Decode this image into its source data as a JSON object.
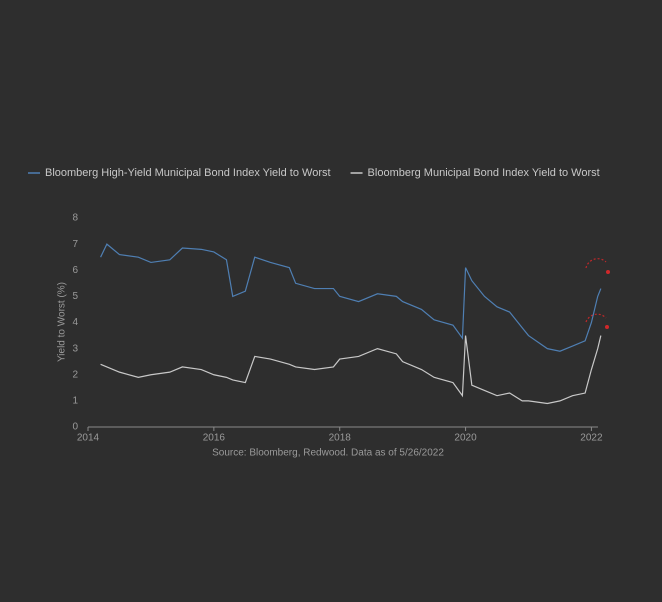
{
  "chart_data": {
    "type": "line",
    "y_label": "Yield to Worst (%)",
    "source": "Source: Bloomberg, Redwood. Data as of 5/26/2022",
    "x": [
      2014.2,
      2014.3,
      2014.5,
      2014.8,
      2015.0,
      2015.3,
      2015.5,
      2015.8,
      2016.0,
      2016.2,
      2016.3,
      2016.5,
      2016.65,
      2016.9,
      2017.2,
      2017.3,
      2017.6,
      2017.9,
      2018.0,
      2018.3,
      2018.6,
      2018.9,
      2019.0,
      2019.3,
      2019.5,
      2019.8,
      2019.95,
      2020.0,
      2020.1,
      2020.3,
      2020.5,
      2020.7,
      2020.9,
      2021.0,
      2021.3,
      2021.5,
      2021.7,
      2021.9,
      2022.0,
      2022.1,
      2022.15
    ],
    "series": [
      {
        "name": "Bloomberg High-Yield Municipal Bond Index Yield to Worst",
        "color": "#4f7fb3",
        "values": [
          6.5,
          7.0,
          6.6,
          6.5,
          6.3,
          6.4,
          6.85,
          6.8,
          6.7,
          6.4,
          5.0,
          5.2,
          6.5,
          6.3,
          6.1,
          5.5,
          5.3,
          5.3,
          5.0,
          4.8,
          5.1,
          5.0,
          4.8,
          4.5,
          4.1,
          3.9,
          3.4,
          6.1,
          5.6,
          5.0,
          4.6,
          4.4,
          3.8,
          3.5,
          3.0,
          2.9,
          3.1,
          3.3,
          4.0,
          5.0,
          5.3
        ]
      },
      {
        "name": "Bloomberg Municipal Bond Index Yield to Worst",
        "color": "#c8c8c8",
        "values": [
          2.4,
          2.3,
          2.1,
          1.9,
          2.0,
          2.1,
          2.3,
          2.2,
          2.0,
          1.9,
          1.8,
          1.7,
          2.7,
          2.6,
          2.4,
          2.3,
          2.2,
          2.3,
          2.6,
          2.7,
          3.0,
          2.8,
          2.5,
          2.2,
          1.9,
          1.7,
          1.2,
          3.5,
          1.6,
          1.4,
          1.2,
          1.3,
          1.0,
          1.0,
          0.9,
          1.0,
          1.2,
          1.3,
          2.2,
          3.0,
          3.5
        ]
      }
    ],
    "xlim": [
      2014,
      2022.2
    ],
    "xticks": [
      2014,
      2016,
      2018,
      2020,
      2022
    ],
    "ylim": [
      0,
      8
    ],
    "yticks": [
      0,
      1,
      2,
      3,
      4,
      5,
      6,
      7,
      8
    ]
  }
}
